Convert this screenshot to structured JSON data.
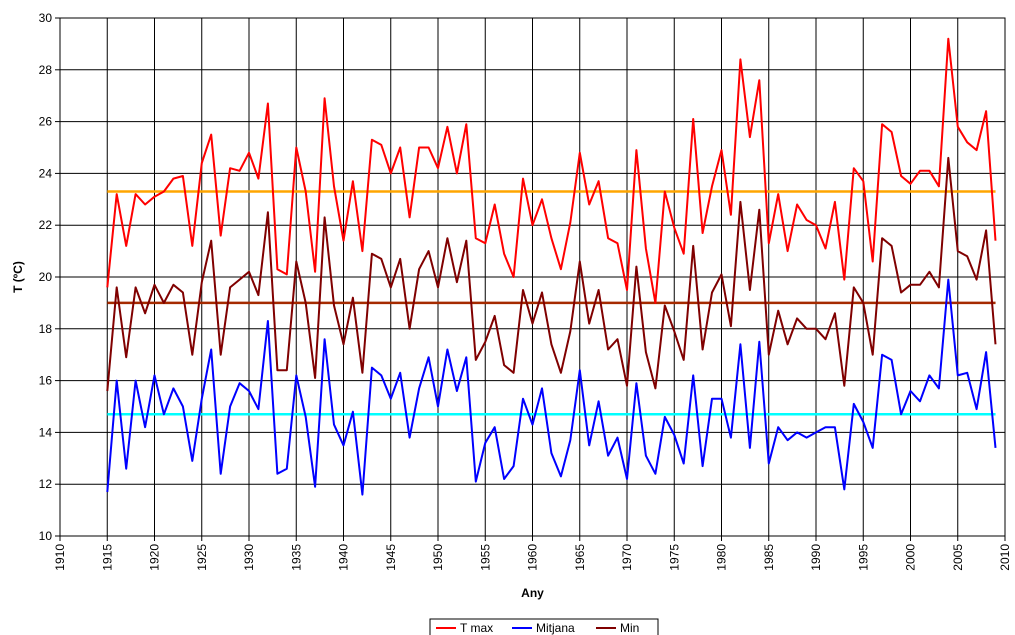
{
  "chart_data": {
    "type": "line",
    "xlabel": "Any",
    "ylabel": "T (ºC)",
    "xlim": [
      1910,
      2010
    ],
    "ylim": [
      10,
      30
    ],
    "x_ticks": [
      1910,
      1915,
      1920,
      1925,
      1930,
      1935,
      1940,
      1945,
      1950,
      1955,
      1960,
      1965,
      1970,
      1975,
      1980,
      1985,
      1990,
      1995,
      2000,
      2005,
      2010
    ],
    "y_ticks": [
      10,
      12,
      14,
      16,
      18,
      20,
      22,
      24,
      26,
      28,
      30
    ],
    "grid": true,
    "legend_position": "bottom",
    "x": [
      1915,
      1916,
      1917,
      1918,
      1919,
      1920,
      1921,
      1922,
      1923,
      1924,
      1925,
      1926,
      1927,
      1928,
      1929,
      1930,
      1931,
      1932,
      1933,
      1934,
      1935,
      1936,
      1937,
      1938,
      1939,
      1940,
      1941,
      1942,
      1943,
      1944,
      1945,
      1946,
      1947,
      1948,
      1949,
      1950,
      1951,
      1952,
      1953,
      1954,
      1955,
      1956,
      1957,
      1958,
      1959,
      1960,
      1961,
      1962,
      1963,
      1964,
      1965,
      1966,
      1967,
      1968,
      1969,
      1970,
      1971,
      1972,
      1973,
      1974,
      1975,
      1976,
      1977,
      1978,
      1979,
      1980,
      1981,
      1982,
      1983,
      1984,
      1985,
      1986,
      1987,
      1988,
      1989,
      1990,
      1991,
      1992,
      1993,
      1994,
      1995,
      1996,
      1997,
      1998,
      1999,
      2000,
      2001,
      2002,
      2003,
      2004,
      2005,
      2006,
      2007,
      2008,
      2009
    ],
    "series": [
      {
        "name": "T max",
        "color": "#ff0000",
        "values": [
          19.6,
          23.2,
          21.2,
          23.2,
          22.8,
          23.1,
          23.3,
          23.8,
          23.9,
          21.2,
          24.4,
          25.5,
          21.6,
          24.2,
          24.1,
          24.8,
          23.8,
          26.7,
          20.3,
          20.1,
          25.0,
          23.3,
          20.2,
          26.9,
          23.5,
          21.4,
          23.7,
          21.0,
          25.3,
          25.1,
          24.0,
          25.0,
          22.3,
          25.0,
          25.0,
          24.2,
          25.8,
          24.0,
          25.9,
          21.5,
          21.3,
          22.8,
          20.9,
          20.0,
          23.8,
          22.0,
          23.0,
          21.5,
          20.3,
          22.1,
          24.8,
          22.8,
          23.7,
          21.5,
          21.3,
          19.5,
          24.9,
          21.1,
          19.0,
          23.3,
          21.9,
          20.9,
          26.1,
          21.7,
          23.5,
          24.9,
          22.4,
          28.4,
          25.4,
          27.6,
          21.3,
          23.2,
          21.0,
          22.8,
          22.2,
          22.0,
          21.1,
          22.9,
          19.9,
          24.2,
          23.7,
          20.6,
          25.9,
          25.6,
          23.9,
          23.6,
          24.1,
          24.1,
          23.5,
          29.2,
          25.8,
          25.2,
          24.9,
          26.4,
          21.4
        ]
      },
      {
        "name": "Mitjana",
        "color": "#0000ff",
        "values": [
          11.7,
          16.0,
          12.6,
          16.0,
          14.2,
          16.2,
          14.7,
          15.7,
          15.0,
          12.9,
          15.3,
          17.2,
          12.4,
          15.0,
          15.9,
          15.6,
          14.9,
          18.3,
          12.4,
          12.6,
          16.2,
          14.6,
          11.9,
          17.6,
          14.3,
          13.5,
          14.8,
          11.6,
          16.5,
          16.2,
          15.3,
          16.3,
          13.8,
          15.7,
          16.9,
          15.0,
          17.2,
          15.6,
          16.9,
          12.1,
          13.6,
          14.2,
          12.2,
          12.7,
          15.3,
          14.3,
          15.7,
          13.2,
          12.3,
          13.7,
          16.4,
          13.5,
          15.2,
          13.1,
          13.8,
          12.2,
          15.9,
          13.1,
          12.4,
          14.6,
          13.9,
          12.8,
          16.2,
          12.7,
          15.3,
          15.3,
          13.8,
          17.4,
          13.4,
          17.5,
          12.8,
          14.2,
          13.7,
          14.0,
          13.8,
          14.0,
          14.2,
          14.2,
          11.8,
          15.1,
          14.4,
          13.4,
          17.0,
          16.8,
          14.7,
          15.6,
          15.2,
          16.2,
          15.7,
          19.9,
          16.2,
          16.3,
          14.9,
          17.1,
          13.4
        ]
      },
      {
        "name": "Min",
        "color": "#800000",
        "values": [
          15.6,
          19.6,
          16.9,
          19.6,
          18.6,
          19.7,
          19.0,
          19.7,
          19.4,
          17.0,
          19.8,
          21.4,
          17.0,
          19.6,
          19.9,
          20.2,
          19.3,
          22.5,
          16.4,
          16.4,
          20.6,
          19.0,
          16.1,
          22.3,
          18.9,
          17.4,
          19.2,
          16.3,
          20.9,
          20.7,
          19.6,
          20.7,
          18.0,
          20.3,
          21.0,
          19.6,
          21.5,
          19.8,
          21.4,
          16.8,
          17.5,
          18.5,
          16.6,
          16.3,
          19.5,
          18.2,
          19.4,
          17.4,
          16.3,
          17.9,
          20.6,
          18.2,
          19.5,
          17.2,
          17.6,
          15.8,
          20.4,
          17.1,
          15.7,
          18.9,
          17.9,
          16.8,
          21.2,
          17.2,
          19.4,
          20.1,
          18.1,
          22.9,
          19.5,
          22.6,
          17.0,
          18.7,
          17.4,
          18.4,
          18.0,
          18.0,
          17.6,
          18.6,
          15.8,
          19.6,
          19.0,
          17.0,
          21.5,
          21.2,
          19.4,
          19.7,
          19.7,
          20.2,
          19.6,
          24.6,
          21.0,
          20.8,
          19.9,
          21.8,
          17.4
        ]
      }
    ],
    "reference_lines": [
      {
        "value": 23.3,
        "color": "#ffa500"
      },
      {
        "value": 19.0,
        "color": "#a52a00"
      },
      {
        "value": 14.7,
        "color": "#00ffff"
      }
    ]
  }
}
